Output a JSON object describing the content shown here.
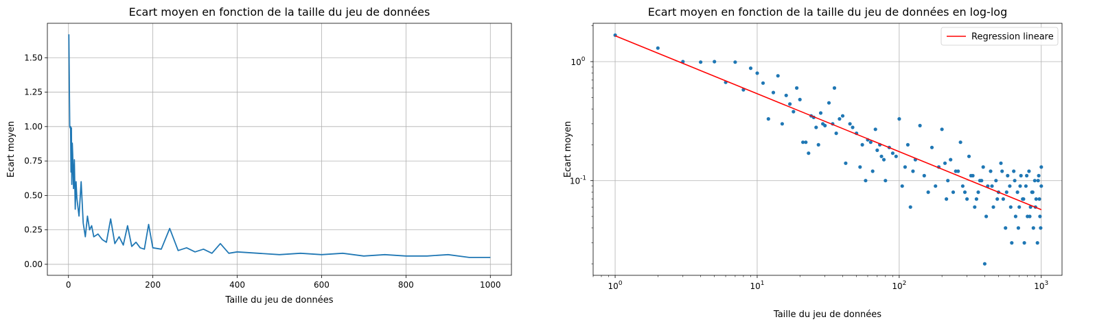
{
  "chart_data": [
    {
      "type": "line",
      "title": "Ecart moyen en fonction de la taille du jeu de données",
      "xlabel": "Taille du jeu de données",
      "ylabel": "Ecart moyen",
      "xlim": [
        -50,
        1050
      ],
      "ylim": [
        -0.08,
        1.75
      ],
      "grid": true,
      "xticks": [
        0,
        200,
        400,
        600,
        800,
        1000
      ],
      "xtick_labels": [
        "0",
        "200",
        "400",
        "600",
        "800",
        "1000"
      ],
      "yticks": [
        0.0,
        0.25,
        0.5,
        0.75,
        1.0,
        1.25,
        1.5
      ],
      "ytick_labels": [
        "0.00",
        "0.25",
        "0.50",
        "0.75",
        "1.00",
        "1.25",
        "1.50"
      ],
      "color": "#1f77b4",
      "series": [
        {
          "x": [
            1,
            2,
            3,
            4,
            5,
            6,
            7,
            8,
            9,
            10,
            12,
            14,
            16,
            18,
            20,
            25,
            30,
            35,
            40,
            45,
            50,
            55,
            60,
            70,
            80,
            90,
            100,
            110,
            120,
            130,
            140,
            150,
            160,
            170,
            180,
            190,
            200,
            220,
            240,
            260,
            280,
            300,
            320,
            340,
            360,
            380,
            400,
            450,
            500,
            550,
            600,
            650,
            700,
            750,
            800,
            850,
            900,
            950,
            1000
          ],
          "values": [
            1.67,
            1.3,
            1.0,
            0.99,
            1.0,
            0.67,
            0.99,
            0.58,
            0.88,
            0.8,
            0.55,
            0.76,
            0.4,
            0.6,
            0.48,
            0.35,
            0.6,
            0.3,
            0.2,
            0.35,
            0.25,
            0.28,
            0.2,
            0.22,
            0.18,
            0.16,
            0.33,
            0.15,
            0.2,
            0.14,
            0.28,
            0.13,
            0.16,
            0.12,
            0.11,
            0.29,
            0.12,
            0.11,
            0.26,
            0.1,
            0.12,
            0.09,
            0.11,
            0.08,
            0.15,
            0.08,
            0.09,
            0.08,
            0.07,
            0.08,
            0.07,
            0.08,
            0.06,
            0.07,
            0.06,
            0.06,
            0.07,
            0.05,
            0.05
          ]
        }
      ]
    },
    {
      "type": "scatter",
      "title": "Ecart moyen en fonction de la taille du jeu de données en log-log",
      "xlabel": "Taille du jeu de données",
      "ylabel": "Ecart moyen",
      "xscale": "log",
      "yscale": "log",
      "xlim": [
        0.7,
        1400
      ],
      "ylim": [
        0.016,
        2.1
      ],
      "grid": true,
      "xticks": [
        1,
        10,
        100,
        1000
      ],
      "xtick_labels": [
        "10^0",
        "10^1",
        "10^2",
        "10^3"
      ],
      "yticks": [
        0.1,
        1
      ],
      "ytick_labels": [
        "10^-1",
        "10^0"
      ],
      "legend": "top-right",
      "series": [
        {
          "kind": "points",
          "color": "#1f77b4",
          "x": [
            1,
            2,
            3,
            4,
            5,
            6,
            7,
            8,
            9,
            10,
            11,
            12,
            13,
            14,
            15,
            16,
            17,
            18,
            19,
            20,
            21,
            22,
            23,
            24,
            25,
            26,
            27,
            28,
            29,
            30,
            32,
            34,
            35,
            36,
            38,
            40,
            42,
            45,
            47,
            50,
            53,
            55,
            58,
            60,
            63,
            65,
            68,
            70,
            73,
            75,
            78,
            80,
            85,
            90,
            95,
            100,
            105,
            110,
            115,
            120,
            125,
            130,
            140,
            150,
            160,
            170,
            180,
            190,
            200,
            215,
            230,
            250,
            270,
            290,
            310,
            330,
            350,
            370,
            390,
            400,
            420,
            440,
            460,
            480,
            500,
            520,
            540,
            560,
            580,
            600,
            620,
            640,
            660,
            680,
            700,
            720,
            740,
            760,
            780,
            800,
            820,
            840,
            860,
            880,
            900,
            920,
            940,
            960,
            980,
            1000,
            1000,
            990,
            970,
            950,
            910,
            870,
            830,
            790,
            750,
            710,
            690,
            650,
            610,
            570,
            530,
            490,
            450,
            410,
            380,
            360,
            340,
            320,
            300,
            280,
            260,
            240,
            220,
            210
          ],
          "values": [
            1.67,
            1.3,
            1.0,
            0.99,
            1.0,
            0.67,
            0.99,
            0.58,
            0.88,
            0.8,
            0.66,
            0.33,
            0.55,
            0.76,
            0.3,
            0.52,
            0.44,
            0.38,
            0.6,
            0.48,
            0.21,
            0.21,
            0.17,
            0.35,
            0.34,
            0.28,
            0.2,
            0.37,
            0.3,
            0.29,
            0.45,
            0.3,
            0.6,
            0.25,
            0.33,
            0.35,
            0.14,
            0.3,
            0.28,
            0.25,
            0.13,
            0.2,
            0.1,
            0.22,
            0.21,
            0.12,
            0.27,
            0.18,
            0.2,
            0.16,
            0.15,
            0.1,
            0.19,
            0.17,
            0.16,
            0.33,
            0.09,
            0.13,
            0.2,
            0.06,
            0.12,
            0.15,
            0.29,
            0.11,
            0.08,
            0.19,
            0.09,
            0.13,
            0.27,
            0.07,
            0.15,
            0.12,
            0.21,
            0.08,
            0.16,
            0.11,
            0.07,
            0.1,
            0.13,
            0.02,
            0.09,
            0.12,
            0.06,
            0.1,
            0.08,
            0.14,
            0.07,
            0.04,
            0.11,
            0.09,
            0.03,
            0.12,
            0.05,
            0.08,
            0.06,
            0.11,
            0.07,
            0.03,
            0.09,
            0.05,
            0.12,
            0.06,
            0.08,
            0.04,
            0.1,
            0.07,
            0.03,
            0.11,
            0.05,
            0.09,
            0.13,
            0.04,
            0.07,
            0.1,
            0.06,
            0.08,
            0.05,
            0.11,
            0.07,
            0.09,
            0.04,
            0.1,
            0.06,
            0.08,
            0.12,
            0.07,
            0.09,
            0.05,
            0.1,
            0.08,
            0.06,
            0.11,
            0.07,
            0.09,
            0.12,
            0.08,
            0.1,
            0.14
          ]
        },
        {
          "kind": "line",
          "name": "Regression lineare",
          "color": "#ff0000",
          "x": [
            1,
            1000
          ],
          "values": [
            1.65,
            0.057
          ]
        }
      ]
    }
  ]
}
